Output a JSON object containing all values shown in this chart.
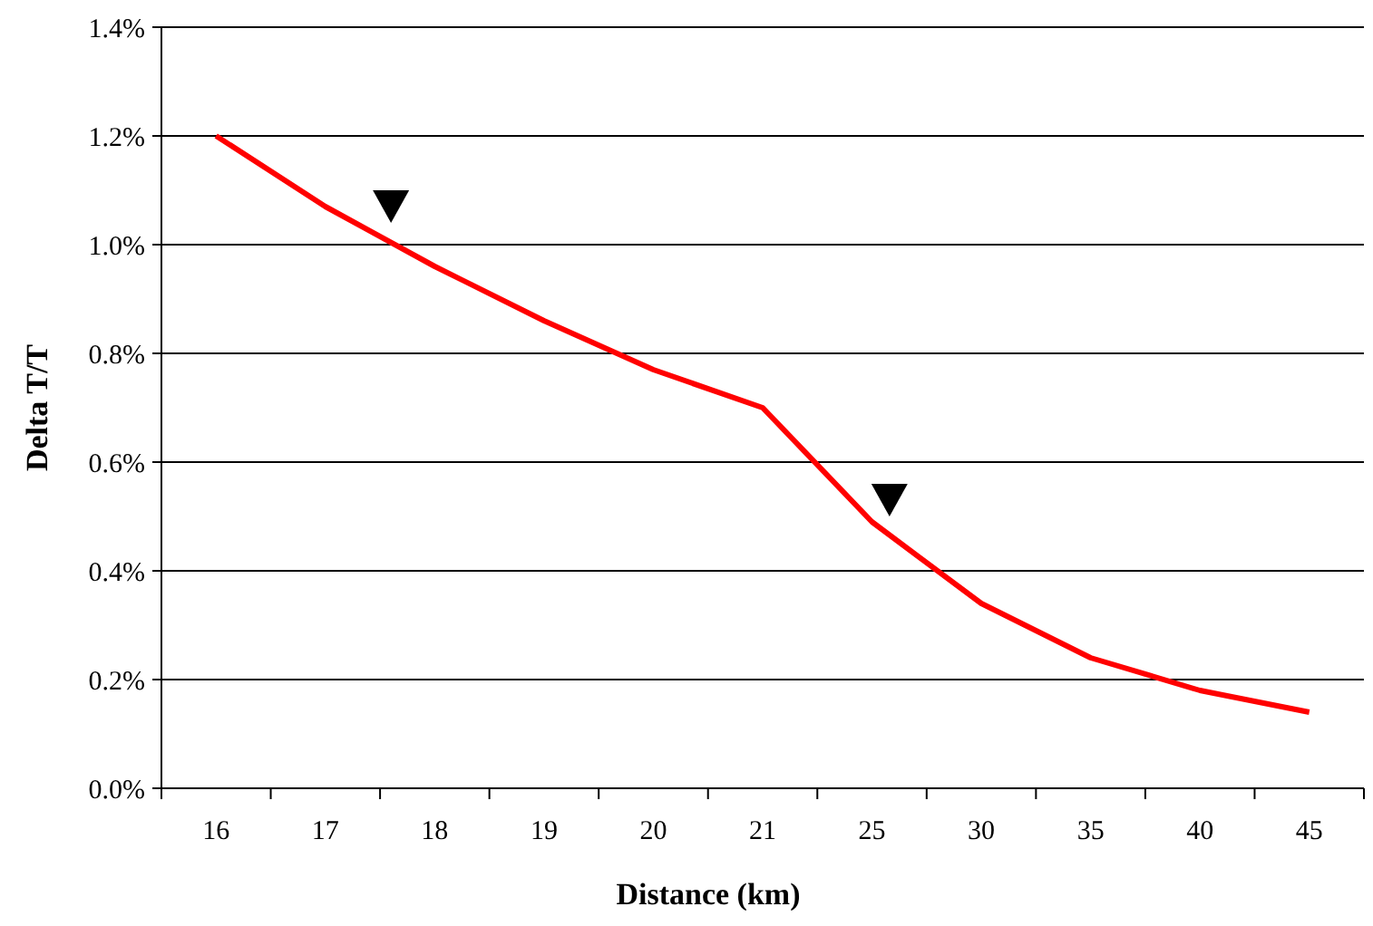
{
  "chart_data": {
    "type": "line",
    "xlabel": "Distance (km)",
    "ylabel": "Delta T/T",
    "categories": [
      "16",
      "17",
      "18",
      "19",
      "20",
      "21",
      "25",
      "30",
      "35",
      "40",
      "45"
    ],
    "series": [
      {
        "color": "#ff0000",
        "values": [
          1.2,
          1.07,
          0.96,
          0.86,
          0.77,
          0.7,
          0.49,
          0.34,
          0.24,
          0.18,
          0.14
        ]
      }
    ],
    "ylim": [
      0,
      1.4
    ],
    "yticks": [
      {
        "value": 0,
        "label": "0.0%"
      },
      {
        "value": 0.2,
        "label": "0.2%"
      },
      {
        "value": 0.4,
        "label": "0.4%"
      },
      {
        "value": 0.6,
        "label": "0.6%"
      },
      {
        "value": 0.8,
        "label": "0.8%"
      },
      {
        "value": 1.0,
        "label": "1.0%"
      },
      {
        "value": 1.2,
        "label": "1.2%"
      },
      {
        "value": 1.4,
        "label": "1.4%"
      }
    ],
    "grid": "y",
    "line_style": "solid"
  }
}
